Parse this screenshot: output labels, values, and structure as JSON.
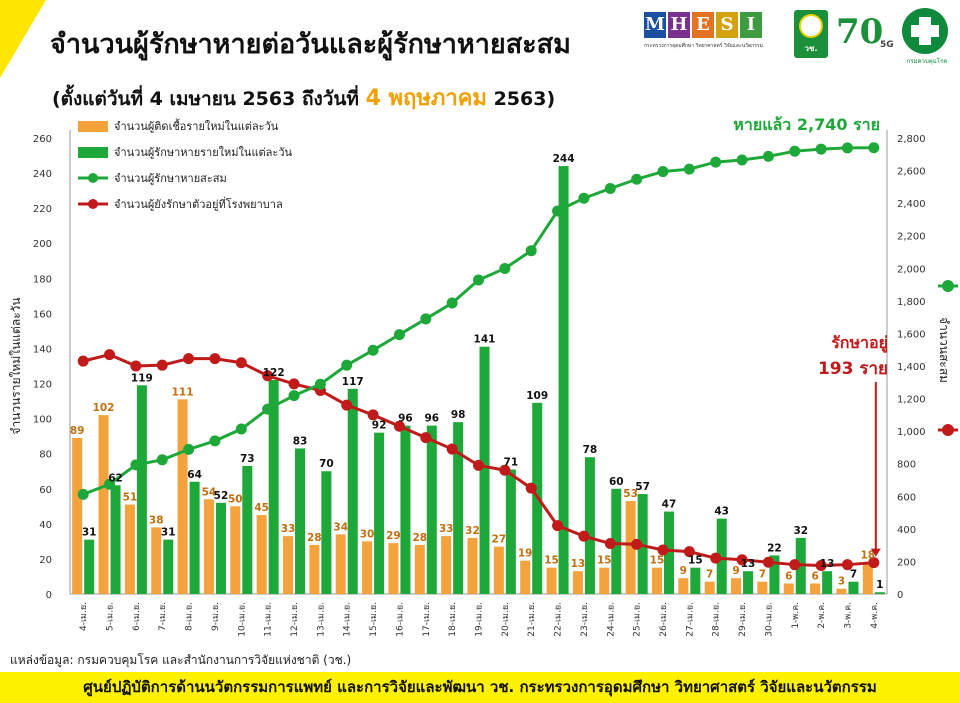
{
  "header": {
    "title": "จำนวนผู้รักษาหายต่อวันและผู้รักษาหายสะสม",
    "subtitle_prefix": "(ตั้งแต่วันที่ 4 เมษายน 2563 ถึงวันที่",
    "subtitle_highlight": "4 พฤษภาคม",
    "subtitle_suffix": "2563)"
  },
  "logos": {
    "mhesi_letters": [
      "M",
      "H",
      "E",
      "S",
      "I"
    ],
    "mhesi_colors": [
      "#1b4fa0",
      "#7b2f8f",
      "#e37222",
      "#d4a10f",
      "#3f9b3f"
    ],
    "mhesi_sub": "กระทรวงการอุดมศึกษา วิทยาศาสตร์ วิจัยและนวัตกรรม",
    "nrct_label": "วช.",
    "seventy": "70",
    "five_g": "5G",
    "ddc_label": "กรมควบคุมโรค"
  },
  "colors": {
    "new_cases": "#f4a23c",
    "new_recovered": "#1fa83a",
    "cum_recovered": "#1fa83a",
    "in_hospital": "#c01a1a",
    "new_cases_label": "#c07010",
    "new_recovered_label": "#111111"
  },
  "chart_data": {
    "type": "bar",
    "categories": [
      "4-เม.ย.",
      "5-เม.ย.",
      "6-เม.ย.",
      "7-เม.ย.",
      "8-เม.ย.",
      "9-เม.ย.",
      "10-เม.ย.",
      "11-เม.ย.",
      "12-เม.ย.",
      "13-เม.ย.",
      "14-เม.ย.",
      "15-เม.ย.",
      "16-เม.ย.",
      "17-เม.ย.",
      "18-เม.ย.",
      "19-เม.ย.",
      "20-เม.ย.",
      "21-เม.ย.",
      "22-เม.ย.",
      "23-เม.ย.",
      "24-เม.ย.",
      "25-เม.ย.",
      "26-เม.ย.",
      "27-เม.ย.",
      "28-เม.ย.",
      "29-เม.ย.",
      "30-เม.ย.",
      "1-พ.ค.",
      "2-พ.ค.",
      "3-พ.ค.",
      "4-พ.ค."
    ],
    "series": [
      {
        "name": "จำนวนผู้ติดเชื้อรายใหม่ในแต่ละวัน",
        "kind": "bar",
        "axis": "left",
        "values": [
          89,
          102,
          51,
          38,
          111,
          54,
          50,
          45,
          33,
          28,
          34,
          30,
          29,
          28,
          33,
          32,
          27,
          19,
          15,
          13,
          15,
          53,
          15,
          9,
          7,
          9,
          7,
          6,
          6,
          3,
          18
        ]
      },
      {
        "name": "จำนวนผู้รักษาหายรายใหม่ในแต่ละวัน",
        "kind": "bar",
        "axis": "left",
        "values": [
          31,
          62,
          119,
          31,
          64,
          52,
          73,
          122,
          83,
          70,
          117,
          92,
          96,
          96,
          98,
          141,
          71,
          109,
          244,
          78,
          60,
          57,
          47,
          15,
          43,
          13,
          22,
          32,
          13,
          7,
          1
        ]
      },
      {
        "name": "จำนวนผู้รักษาหายสะสม",
        "kind": "line",
        "axis": "right",
        "values": [
          612,
          674,
          793,
          824,
          888,
          940,
          1013,
          1135,
          1218,
          1288,
          1405,
          1497,
          1593,
          1689,
          1787,
          1928,
          1999,
          2108,
          2352,
          2430,
          2490,
          2547,
          2594,
          2609,
          2652,
          2665,
          2687,
          2719,
          2732,
          2739,
          2740
        ]
      },
      {
        "name": "จำนวนผู้ยังรักษาตัวอยู่ที่โรงพยาบาล",
        "kind": "line",
        "axis": "right",
        "values": [
          1430,
          1470,
          1400,
          1405,
          1445,
          1445,
          1420,
          1340,
          1290,
          1250,
          1160,
          1100,
          1030,
          960,
          890,
          790,
          760,
          650,
          420,
          355,
          310,
          305,
          270,
          260,
          220,
          210,
          195,
          180,
          175,
          180,
          193
        ]
      }
    ],
    "ylabel": "จำนวนรายใหม่ในแต่ละวัน",
    "y2label": "จำนวนสะสม",
    "ylim": [
      0,
      260
    ],
    "yticks": [
      0,
      20,
      40,
      60,
      80,
      100,
      120,
      140,
      160,
      180,
      200,
      220,
      240,
      260
    ],
    "y2lim": [
      0,
      2800
    ],
    "y2ticks": [
      0,
      200,
      400,
      600,
      800,
      1000,
      1200,
      1400,
      1600,
      1800,
      2000,
      2200,
      2400,
      2600,
      2800
    ],
    "y2tick_labels": [
      "0",
      "200",
      "400",
      "600",
      "800",
      "1,000",
      "1,200",
      "1,400",
      "1,600",
      "1,800",
      "2,000",
      "2,200",
      "2,400",
      "2,600",
      "2,800"
    ],
    "legend_placement": "top-left",
    "grid": false,
    "annotations": {
      "recovered_total": "หายแล้ว 2,740 ราย",
      "in_treatment_line1": "รักษาอยู่",
      "in_treatment_line2": "193 ราย"
    }
  },
  "footer": {
    "source": "แหล่งข้อมูล: กรมควบคุมโรค และสำนักงานการวิจัยแห่งชาติ (วช.)",
    "banner": "ศูนย์ปฏิบัติการด้านนวัตกรรมการแพทย์ และการวิจัยและพัฒนา   วช.   กระทรวงการอุดมศึกษา วิทยาศาสตร์ วิจัยและนวัตกรรม"
  }
}
